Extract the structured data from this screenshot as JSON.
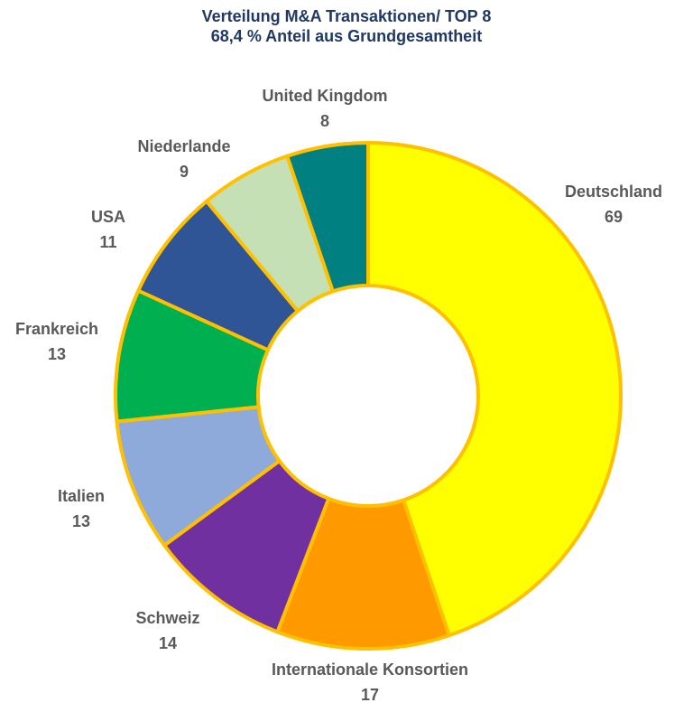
{
  "chart_data": {
    "type": "pie",
    "variant": "donut",
    "title": "Verteilung M&A Transaktionen/ TOP 8",
    "subtitle": "68,4 % Anteil aus Grundgesamtheit",
    "start": "12 o'clock",
    "direction": "clockwise",
    "slices": [
      {
        "label": "Deutschland",
        "value": 69,
        "color": "#ffff00"
      },
      {
        "label": "Internationale Konsortien",
        "value": 17,
        "color": "#ff9900"
      },
      {
        "label": "Schweiz",
        "value": 14,
        "color": "#7030a0"
      },
      {
        "label": "Italien",
        "value": 13,
        "color": "#8eaadb"
      },
      {
        "label": "Frankreich",
        "value": 13,
        "color": "#00b050"
      },
      {
        "label": "USA",
        "value": 11,
        "color": "#2f5597"
      },
      {
        "label": "Niederlande",
        "value": 9,
        "color": "#c5e0b4"
      },
      {
        "label": "United Kingdom",
        "value": 8,
        "color": "#008080"
      }
    ],
    "slice_border_color": "#ffc000",
    "label_color": "#595959",
    "title_color": "#1f3864"
  }
}
